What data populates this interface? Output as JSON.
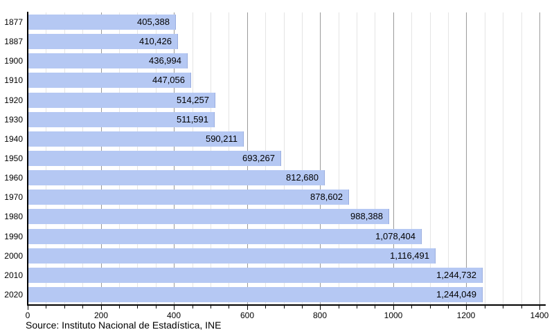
{
  "chart_data": {
    "type": "bar",
    "orientation": "horizontal",
    "title": "",
    "xlabel": "",
    "ylabel": "",
    "categories": [
      "1877",
      "1887",
      "1900",
      "1910",
      "1920",
      "1930",
      "1940",
      "1950",
      "1960",
      "1970",
      "1980",
      "1990",
      "2000",
      "2010",
      "2020"
    ],
    "values": [
      405388,
      410426,
      436994,
      447056,
      514257,
      511591,
      590211,
      693267,
      812680,
      878602,
      988388,
      1078404,
      1116491,
      1244732,
      1244049
    ],
    "value_labels": [
      "405,388",
      "410,426",
      "436,994",
      "447,056",
      "514,257",
      "511,591",
      "590,211",
      "693,267",
      "812,680",
      "878,602",
      "988,388",
      "1,078,404",
      "1,116,491",
      "1,244,732",
      "1,244,049"
    ],
    "axis_unit": "thousands",
    "xlim": [
      0,
      1400
    ],
    "x_tick_labels": [
      "0",
      "200",
      "400",
      "600",
      "800",
      "1000",
      "1200",
      "1400"
    ],
    "x_major_tick_step": 200,
    "x_minor_tick_step": 50,
    "grid": true,
    "legend": "none",
    "bar_color": "#b5c8f3",
    "minor_gridline_color": "#e4e4e4",
    "major_gridline_color": "#9a9a9a",
    "axis_color": "#000000",
    "source": "Source: Instituto Nacional de Estadística, INE"
  }
}
